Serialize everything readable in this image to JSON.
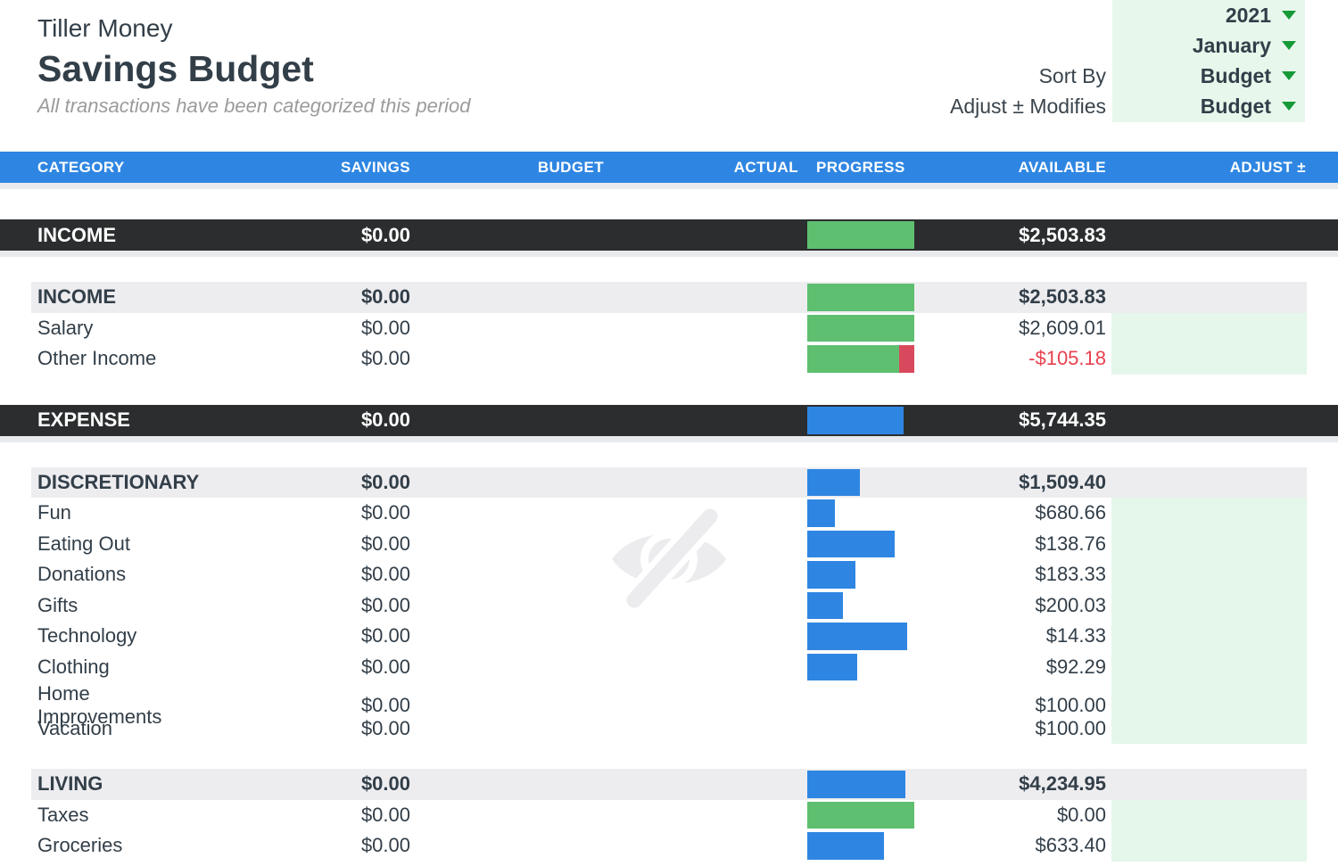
{
  "header": {
    "brand": "Tiller Money",
    "title": "Savings Budget",
    "subtitle": "All transactions have been categorized this period",
    "controls": [
      {
        "label": "",
        "value": "2021"
      },
      {
        "label": "",
        "value": "January"
      },
      {
        "label": "Sort By",
        "value": "Budget"
      },
      {
        "label": "Adjust ± Modifies",
        "value": "Budget"
      }
    ]
  },
  "icons": {
    "dropdown_caret": "caret-down",
    "watermark": "hidden-eye"
  },
  "colors": {
    "header_blue": "#2f86e2",
    "bar_green": "#5fbf70",
    "bar_blue": "#2f86e2",
    "bar_red": "#d9495d",
    "dark_row": "#2b2d2e",
    "section_row": "#ededf0",
    "adjust_green": "#e4f7ea",
    "controls_green": "#e7f7ec",
    "negative_red": "#e8404f",
    "caret_green": "#169a38",
    "text_dark": "#323e48"
  },
  "table": {
    "columns": [
      "CATEGORY",
      "SAVINGS",
      "BUDGET",
      "ACTUAL",
      "PROGRESS",
      "AVAILABLE",
      "ADJUST ±"
    ],
    "rows": [
      {
        "type": "total",
        "category": "INCOME",
        "savings": "$0.00",
        "budget": "",
        "actual": "",
        "progress": [
          {
            "color": "green",
            "pct": 100
          }
        ],
        "available": "$2,503.83"
      },
      {
        "type": "section",
        "category": "INCOME",
        "savings": "$0.00",
        "budget": "",
        "actual": "",
        "progress": [
          {
            "color": "green",
            "pct": 100
          }
        ],
        "available": "$2,503.83"
      },
      {
        "type": "item",
        "category": "Salary",
        "savings": "$0.00",
        "budget": "",
        "actual": "",
        "progress": [
          {
            "color": "green",
            "pct": 100
          }
        ],
        "available": "$2,609.01"
      },
      {
        "type": "item",
        "category": "Other Income",
        "savings": "$0.00",
        "budget": "",
        "actual": "",
        "progress": [
          {
            "color": "green",
            "pct": 86
          },
          {
            "color": "red",
            "pct": 14
          }
        ],
        "available": "-$105.18",
        "negative": true
      },
      {
        "type": "total",
        "category": "EXPENSE",
        "savings": "$0.00",
        "budget": "",
        "actual": "",
        "progress": [
          {
            "color": "blue",
            "pct": 90
          }
        ],
        "available": "$5,744.35"
      },
      {
        "type": "section",
        "category": "DISCRETIONARY",
        "savings": "$0.00",
        "budget": "",
        "actual": "",
        "progress": [
          {
            "color": "blue",
            "pct": 49
          }
        ],
        "available": "$1,509.40"
      },
      {
        "type": "item",
        "category": "Fun",
        "savings": "$0.00",
        "budget": "",
        "actual": "",
        "progress": [
          {
            "color": "blue",
            "pct": 26
          }
        ],
        "available": "$680.66"
      },
      {
        "type": "item",
        "category": "Eating Out",
        "savings": "$0.00",
        "budget": "",
        "actual": "",
        "progress": [
          {
            "color": "blue",
            "pct": 82
          }
        ],
        "available": "$138.76"
      },
      {
        "type": "item",
        "category": "Donations",
        "savings": "$0.00",
        "budget": "",
        "actual": "",
        "progress": [
          {
            "color": "blue",
            "pct": 45
          }
        ],
        "available": "$183.33"
      },
      {
        "type": "item",
        "category": "Gifts",
        "savings": "$0.00",
        "budget": "",
        "actual": "",
        "progress": [
          {
            "color": "blue",
            "pct": 33
          }
        ],
        "available": "$200.03"
      },
      {
        "type": "item",
        "category": "Technology",
        "savings": "$0.00",
        "budget": "",
        "actual": "",
        "progress": [
          {
            "color": "blue",
            "pct": 93
          }
        ],
        "available": "$14.33"
      },
      {
        "type": "item",
        "category": "Clothing",
        "savings": "$0.00",
        "budget": "",
        "actual": "",
        "progress": [
          {
            "color": "blue",
            "pct": 47
          }
        ],
        "available": "$92.29"
      },
      {
        "type": "item",
        "category": "Home Improvements",
        "savings": "$0.00",
        "budget": "",
        "actual": "",
        "progress": [],
        "available": "$100.00"
      },
      {
        "type": "item",
        "category": "Vacation",
        "savings": "$0.00",
        "budget": "",
        "actual": "",
        "progress": [],
        "available": "$100.00"
      },
      {
        "type": "section",
        "category": "LIVING",
        "savings": "$0.00",
        "budget": "",
        "actual": "",
        "progress": [
          {
            "color": "blue",
            "pct": 92
          }
        ],
        "available": "$4,234.95"
      },
      {
        "type": "item",
        "category": "Taxes",
        "savings": "$0.00",
        "budget": "",
        "actual": "",
        "progress": [
          {
            "color": "green",
            "pct": 100
          }
        ],
        "available": "$0.00"
      },
      {
        "type": "item",
        "category": "Groceries",
        "savings": "$0.00",
        "budget": "",
        "actual": "",
        "progress": [
          {
            "color": "blue",
            "pct": 72
          }
        ],
        "available": "$633.40"
      }
    ]
  }
}
